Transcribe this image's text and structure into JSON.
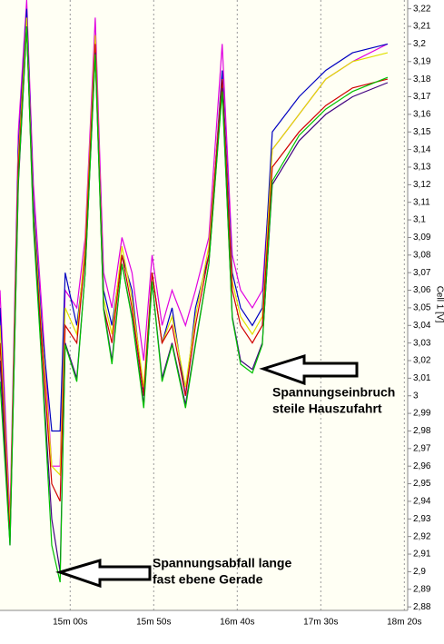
{
  "chart_data": {
    "type": "line",
    "ylabel": "Cell 1 [V]",
    "x": [
      858,
      864,
      869,
      874,
      878,
      883,
      889,
      894,
      897,
      904,
      909,
      915,
      920,
      925,
      931,
      937,
      944,
      949,
      955,
      961,
      969,
      975,
      983,
      991,
      997,
      1002,
      1009,
      1015,
      1021,
      1037,
      1053,
      1069,
      1090
    ],
    "series": [
      {
        "name": "Magenta",
        "color": "#e000e0",
        "values": [
          3.06,
          2.93,
          3.15,
          3.225,
          3.12,
          3.05,
          2.96,
          2.96,
          3.06,
          3.05,
          3.09,
          3.215,
          3.07,
          3.05,
          3.09,
          3.07,
          3.02,
          3.08,
          3.04,
          3.06,
          3.04,
          3.06,
          3.09,
          3.2,
          3.08,
          3.06,
          3.05,
          3.06,
          3.14,
          3.16,
          3.18,
          3.19,
          3.2
        ]
      },
      {
        "name": "Blue",
        "color": "#0000c0",
        "values": [
          3.05,
          2.92,
          3.14,
          3.22,
          3.11,
          3.04,
          2.98,
          2.98,
          3.07,
          3.04,
          3.08,
          3.2,
          3.06,
          3.04,
          3.08,
          3.06,
          3.0,
          3.07,
          3.03,
          3.05,
          3.0,
          3.05,
          3.08,
          3.185,
          3.07,
          3.05,
          3.04,
          3.05,
          3.15,
          3.17,
          3.185,
          3.195,
          3.2
        ]
      },
      {
        "name": "Yellow",
        "color": "#e0e000",
        "values": [
          3.04,
          2.925,
          3.135,
          3.215,
          3.105,
          3.035,
          2.96,
          2.955,
          3.05,
          3.035,
          3.085,
          3.205,
          3.055,
          3.035,
          3.085,
          3.055,
          3.005,
          3.07,
          3.03,
          3.045,
          3.005,
          3.045,
          3.085,
          3.18,
          3.065,
          3.045,
          3.035,
          3.045,
          3.14,
          3.16,
          3.18,
          3.19,
          3.195
        ]
      },
      {
        "name": "Red",
        "color": "#d00000",
        "values": [
          3.03,
          2.92,
          3.13,
          3.21,
          3.1,
          3.03,
          2.95,
          2.94,
          3.04,
          3.03,
          3.08,
          3.2,
          3.05,
          3.03,
          3.08,
          3.05,
          3.0,
          3.07,
          3.03,
          3.04,
          3.0,
          3.04,
          3.08,
          3.18,
          3.06,
          3.04,
          3.03,
          3.04,
          3.13,
          3.15,
          3.165,
          3.175,
          3.18
        ]
      },
      {
        "name": "Purple",
        "color": "#400080",
        "values": [
          3.02,
          2.915,
          3.12,
          3.21,
          3.1,
          3.02,
          2.93,
          2.9,
          3.03,
          3.01,
          3.07,
          3.195,
          3.05,
          3.02,
          3.075,
          3.045,
          2.995,
          3.065,
          3.01,
          3.03,
          2.995,
          3.03,
          3.075,
          3.175,
          3.045,
          3.02,
          3.015,
          3.03,
          3.12,
          3.145,
          3.16,
          3.17,
          3.178
        ]
      },
      {
        "name": "Green",
        "color": "#00c000",
        "values": [
          3.008,
          2.915,
          3.122,
          3.21,
          3.096,
          3.018,
          2.915,
          2.894,
          3.029,
          3.008,
          3.07,
          3.194,
          3.049,
          3.018,
          3.075,
          3.044,
          2.993,
          3.065,
          3.008,
          3.029,
          2.993,
          3.029,
          3.075,
          3.173,
          3.044,
          3.018,
          3.013,
          3.029,
          3.122,
          3.148,
          3.163,
          3.173,
          3.181
        ]
      }
    ],
    "xlim": [
      858,
      1102
    ],
    "xticks": [
      {
        "value": 900,
        "label": "15m 00s"
      },
      {
        "value": 950,
        "label": "15m 50s"
      },
      {
        "value": 1000,
        "label": "16m 40s"
      },
      {
        "value": 1050,
        "label": "17m 30s"
      },
      {
        "value": 1100,
        "label": "18m 20s"
      }
    ],
    "ylim": [
      2.878,
      3.225
    ],
    "yticks": [
      {
        "value": 2.88,
        "label": "2,88"
      },
      {
        "value": 2.89,
        "label": "2,89"
      },
      {
        "value": 2.9,
        "label": "2,9"
      },
      {
        "value": 2.91,
        "label": "2,91"
      },
      {
        "value": 2.92,
        "label": "2,92"
      },
      {
        "value": 2.93,
        "label": "2,93"
      },
      {
        "value": 2.94,
        "label": "2,94"
      },
      {
        "value": 2.95,
        "label": "2,95"
      },
      {
        "value": 2.96,
        "label": "2,96"
      },
      {
        "value": 2.97,
        "label": "2,97"
      },
      {
        "value": 2.98,
        "label": "2,98"
      },
      {
        "value": 2.99,
        "label": "2,99"
      },
      3,
      {
        "value": 3.01,
        "label": "3,01"
      },
      {
        "value": 3.02,
        "label": "3,02"
      },
      {
        "value": 3.03,
        "label": "3,03"
      },
      {
        "value": 3.04,
        "label": "3,04"
      },
      {
        "value": 3.05,
        "label": "3,05"
      },
      {
        "value": 3.06,
        "label": "3,06"
      },
      {
        "value": 3.07,
        "label": "3,07"
      },
      {
        "value": 3.08,
        "label": "3,08"
      },
      {
        "value": 3.09,
        "label": "3,09"
      },
      {
        "value": 3.1,
        "label": "3,1"
      },
      {
        "value": 3.11,
        "label": "3,11"
      },
      {
        "value": 3.12,
        "label": "3,12"
      },
      {
        "value": 3.13,
        "label": "3,13"
      },
      {
        "value": 3.14,
        "label": "3,14"
      },
      {
        "value": 3.15,
        "label": "3,15"
      },
      {
        "value": 3.16,
        "label": "3,16"
      },
      {
        "value": 3.17,
        "label": "3,17"
      },
      {
        "value": 3.18,
        "label": "3,18"
      },
      {
        "value": 3.19,
        "label": "3,19"
      },
      {
        "value": 3.2,
        "label": "3,2"
      },
      {
        "value": 3.21,
        "label": "3,21"
      },
      {
        "value": 3.22,
        "label": "3,22"
      }
    ],
    "grid": true,
    "annotations": [
      {
        "lines": [
          "Spannungseinbruch",
          "steile Hauszufahrt"
        ]
      },
      {
        "lines": [
          "Spannungsabfall lange",
          "fast ebene Gerade"
        ]
      }
    ]
  }
}
